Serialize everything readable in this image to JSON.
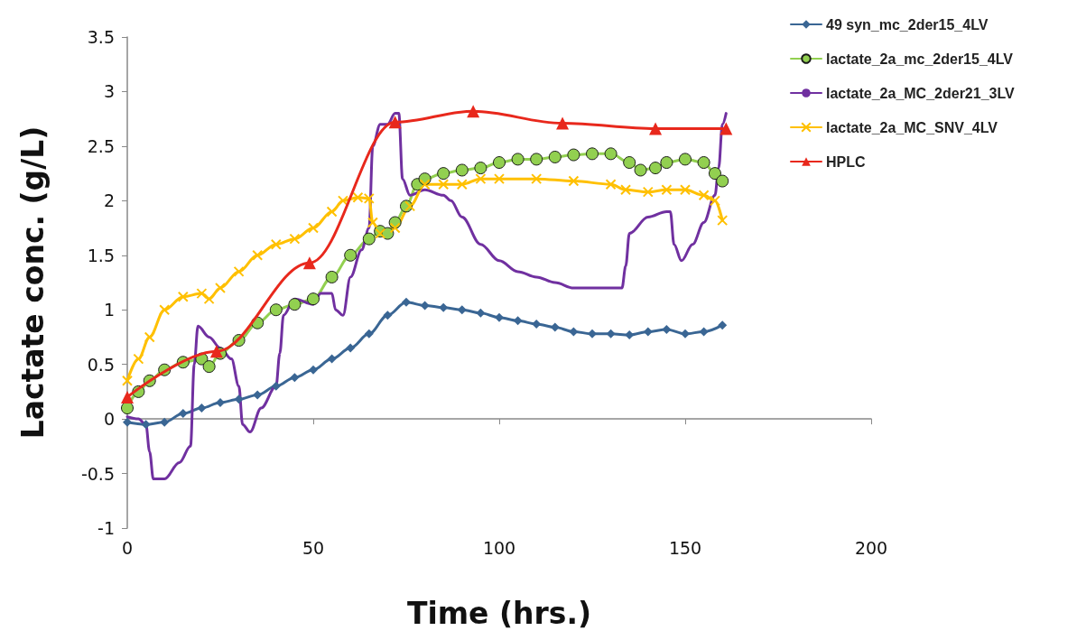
{
  "chart_data": {
    "type": "line",
    "xlabel": "Time (hrs.)",
    "ylabel": "Lactate conc. (g/L)",
    "xlim": [
      0,
      200
    ],
    "xticks": [
      0,
      50,
      100,
      150,
      200
    ],
    "ylim": [
      -1,
      3.5
    ],
    "yticks": [
      -1,
      -0.5,
      0,
      0.5,
      1,
      1.5,
      2,
      2.5,
      3,
      3.5
    ],
    "legend": "top right",
    "line_style": "solid",
    "series": [
      {
        "name": "49 syn_mc_2der15_4LV",
        "color": "#3a6694",
        "marker": "diamond",
        "x": [
          0,
          5,
          10,
          15,
          20,
          25,
          30,
          35,
          40,
          45,
          50,
          55,
          60,
          65,
          70,
          75,
          80,
          85,
          90,
          95,
          100,
          105,
          110,
          115,
          120,
          125,
          130,
          135,
          140,
          145,
          150,
          155,
          160
        ],
        "values": [
          -0.03,
          -0.05,
          -0.03,
          0.05,
          0.1,
          0.15,
          0.18,
          0.22,
          0.3,
          0.38,
          0.45,
          0.55,
          0.65,
          0.78,
          0.95,
          1.07,
          1.04,
          1.02,
          1,
          0.97,
          0.93,
          0.9,
          0.87,
          0.84,
          0.8,
          0.78,
          0.78,
          0.77,
          0.8,
          0.82,
          0.78,
          0.8,
          0.86
        ]
      },
      {
        "name": "lactate_2a_mc_2der15_4LV",
        "color": "#92d050",
        "marker": "circle",
        "x": [
          0,
          3,
          6,
          10,
          15,
          20,
          22,
          25,
          30,
          35,
          40,
          45,
          50,
          55,
          60,
          65,
          68,
          70,
          72,
          75,
          78,
          80,
          85,
          90,
          95,
          100,
          105,
          110,
          115,
          120,
          125,
          130,
          135,
          138,
          142,
          145,
          150,
          155,
          158,
          160
        ],
        "values": [
          0.1,
          0.25,
          0.35,
          0.45,
          0.52,
          0.55,
          0.48,
          0.6,
          0.72,
          0.88,
          1,
          1.05,
          1.1,
          1.3,
          1.5,
          1.65,
          1.72,
          1.7,
          1.8,
          1.95,
          2.15,
          2.2,
          2.25,
          2.28,
          2.3,
          2.35,
          2.38,
          2.38,
          2.4,
          2.42,
          2.43,
          2.43,
          2.35,
          2.28,
          2.3,
          2.35,
          2.38,
          2.35,
          2.25,
          2.18
        ]
      },
      {
        "name": "lactate_2a_MC_2der21_3LV",
        "color": "#7030a0",
        "marker": "none",
        "x": [
          0,
          3,
          5,
          6,
          7,
          10,
          14,
          17,
          18,
          19,
          22,
          25,
          28,
          30,
          31,
          33,
          36,
          40,
          41,
          42,
          45,
          50,
          52,
          55,
          56,
          58,
          60,
          63,
          65,
          66,
          68,
          70,
          72,
          73,
          74,
          76,
          80,
          85,
          87,
          90,
          95,
          100,
          105,
          110,
          115,
          120,
          125,
          130,
          133,
          134,
          135,
          140,
          145,
          146,
          147,
          149,
          152,
          155,
          158,
          159,
          160,
          161
        ],
        "values": [
          0.02,
          0,
          -0.05,
          -0.3,
          -0.55,
          -0.55,
          -0.4,
          -0.25,
          0.5,
          0.85,
          0.75,
          0.65,
          0.55,
          0.3,
          -0.05,
          -0.12,
          0.1,
          0.3,
          0.6,
          0.95,
          1.1,
          1.05,
          1.15,
          1.15,
          1,
          0.95,
          1.3,
          1.55,
          1.75,
          2.5,
          2.7,
          2.7,
          2.8,
          2.8,
          2.2,
          2.05,
          2.1,
          2.05,
          2,
          1.85,
          1.6,
          1.45,
          1.35,
          1.3,
          1.25,
          1.2,
          1.2,
          1.2,
          1.2,
          1.4,
          1.7,
          1.85,
          1.9,
          1.9,
          1.6,
          1.45,
          1.6,
          1.8,
          2.05,
          2.3,
          2.7,
          2.8
        ]
      },
      {
        "name": "lactate_2a_MC_SNV_4LV",
        "color": "#ffc000",
        "marker": "cross",
        "x": [
          0,
          3,
          6,
          10,
          15,
          20,
          22,
          25,
          30,
          35,
          40,
          45,
          50,
          55,
          58,
          62,
          65,
          66,
          68,
          72,
          76,
          80,
          85,
          90,
          95,
          100,
          110,
          120,
          130,
          134,
          140,
          145,
          150,
          155,
          158,
          160
        ],
        "values": [
          0.35,
          0.55,
          0.75,
          1,
          1.12,
          1.15,
          1.1,
          1.2,
          1.35,
          1.5,
          1.6,
          1.65,
          1.75,
          1.9,
          2,
          2.03,
          2.02,
          1.8,
          1.7,
          1.75,
          1.95,
          2.15,
          2.15,
          2.15,
          2.2,
          2.2,
          2.2,
          2.18,
          2.15,
          2.1,
          2.08,
          2.1,
          2.1,
          2.05,
          2,
          1.82
        ]
      },
      {
        "name": "HPLC",
        "color": "#e8281c",
        "marker": "triangle",
        "x": [
          0,
          24,
          49,
          72,
          93,
          117,
          142,
          161
        ],
        "values": [
          0.2,
          0.62,
          1.43,
          2.72,
          2.82,
          2.71,
          2.66,
          2.66
        ]
      }
    ]
  }
}
